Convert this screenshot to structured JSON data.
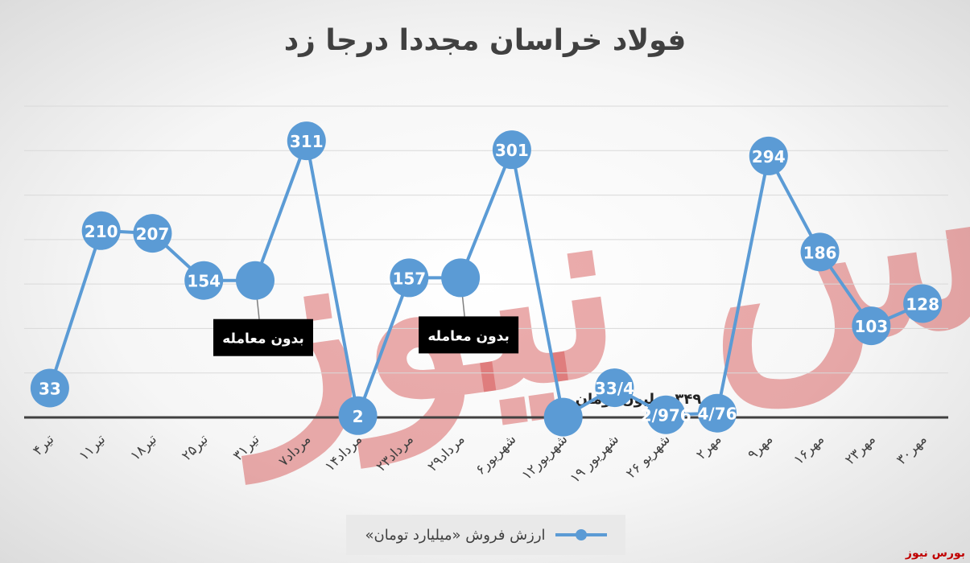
{
  "title": "فولاد خراسان مجددا درجا زد",
  "watermark": "بورس نیوز",
  "source_logo": "بورس نیوز",
  "legend": {
    "label": "ارزش فروش «میلیارد تومان»"
  },
  "colors": {
    "series": "#5b9bd5",
    "grid": "#d9d9d9",
    "axis": "#404040",
    "label_text": "#ffffff"
  },
  "chart_data": {
    "type": "line",
    "title": "فولاد خراسان مجددا درجا زد",
    "categories": [
      "۴تیر",
      "۱۱تیر",
      "۱۸تیر",
      "۲۵تیر",
      "۳۱تیر",
      "۷مرداد",
      "۱۴مرداد",
      "۲۳مرداد",
      "۲۹مرداد",
      "۶شهریور",
      "۱۲شهریور",
      "۱۹ شهریور",
      "۲۶ شهریو",
      "۲مهر",
      "۹مهر",
      "۱۶مهر",
      "۲۳مهر",
      "۳۰مهر"
    ],
    "series": [
      {
        "name": "ارزش فروش «میلیارد تومان»",
        "values": [
          33,
          210,
          207,
          154,
          154,
          311,
          2,
          157,
          157,
          301,
          0.349,
          33.4,
          2.976,
          4.76,
          294,
          186,
          103,
          128
        ],
        "point_labels": [
          "33",
          "210",
          "207",
          "154",
          "",
          "311",
          "2",
          "157",
          "",
          "301",
          "",
          "33/4",
          "2/976",
          "4/76",
          "294",
          "186",
          "103",
          "128"
        ]
      }
    ],
    "ylim": [
      0,
      350
    ],
    "grid": true,
    "legend_position": "bottom",
    "annotations": [
      {
        "category_index": 4,
        "text": "بدون معامله"
      },
      {
        "category_index": 8,
        "text": "بدون معامله"
      },
      {
        "category_index": 10,
        "text": "۳۴۹ میلیون تومان"
      }
    ]
  }
}
